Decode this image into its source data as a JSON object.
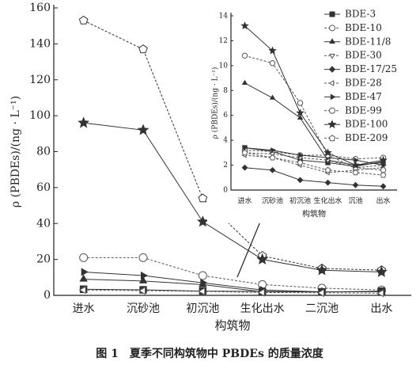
{
  "chart_data": [
    {
      "type": "line",
      "title": "图 1　夏季不同构筑物中 PBDEs 的质量浓度",
      "x_label": "构筑物",
      "y_label": "ρ (PBDEs)/(ng · L⁻¹)",
      "categories": [
        "进水",
        "沉砂池",
        "初沉池",
        "生化出水",
        "二沉池",
        "出水"
      ],
      "ylim": [
        0,
        160
      ],
      "yticks": [
        0,
        20,
        40,
        60,
        80,
        100,
        120,
        140,
        160
      ],
      "series": [
        {
          "values": [
            153,
            137,
            54,
            22,
            15,
            14
          ],
          "marker": "pentagon",
          "filled": false,
          "dashed": true,
          "color": "#333"
        },
        {
          "values": [
            96,
            92,
            41,
            20,
            14,
            13
          ],
          "marker": "star",
          "filled": true,
          "dashed": false,
          "color": "#333"
        },
        {
          "values": [
            21,
            21,
            11,
            6,
            4,
            3
          ],
          "marker": "circle",
          "filled": false,
          "dashed": true,
          "color": "#555"
        },
        {
          "values": [
            13,
            11,
            7,
            3,
            2,
            2
          ],
          "marker": "triangle-right",
          "filled": true,
          "dashed": false,
          "color": "#333"
        },
        {
          "values": [
            9,
            8,
            6,
            2,
            2,
            2
          ],
          "marker": "triangle-up",
          "filled": true,
          "dashed": false,
          "color": "#333"
        },
        {
          "values": [
            3.4,
            3.1,
            2.4,
            2.2,
            1.9,
            2.3
          ],
          "marker": "square",
          "filled": true,
          "dashed": false,
          "color": "#333"
        },
        {
          "values": [
            3,
            2.6,
            2.2,
            1.6,
            1.4,
            1.2
          ],
          "marker": "triangle-left",
          "filled": false,
          "dashed": true,
          "color": "#555"
        }
      ]
    },
    {
      "type": "line",
      "x_label": "构筑物",
      "y_label": "ρ (PBDEs)/(ng · L⁻¹)",
      "categories": [
        "进水",
        "沉砂池",
        "初沉池",
        "生化出水",
        "沉池",
        "出水"
      ],
      "ylim": [
        0,
        14
      ],
      "yticks": [
        0,
        2,
        4,
        6,
        8,
        10,
        12,
        14
      ],
      "series": [
        {
          "name": "BDE-3",
          "values": [
            3.4,
            3.1,
            2.4,
            2.2,
            1.9,
            2.3
          ],
          "marker": "square",
          "filled": true,
          "dashed": false,
          "color": "#333"
        },
        {
          "name": "BDE-10",
          "values": [
            3.2,
            3.1,
            2.8,
            2.8,
            2.5,
            2.6
          ],
          "marker": "circle",
          "filled": false,
          "dashed": true,
          "color": "#555"
        },
        {
          "name": "BDE-11/8",
          "values": [
            8.6,
            7.4,
            5.8,
            2.4,
            2.0,
            2.2
          ],
          "marker": "triangle-up",
          "filled": true,
          "dashed": false,
          "color": "#333"
        },
        {
          "name": "BDE-30",
          "values": [
            3.0,
            2.9,
            2.6,
            2.4,
            1.8,
            2.0
          ],
          "marker": "triangle-down",
          "filled": false,
          "dashed": true,
          "color": "#555"
        },
        {
          "name": "BDE-17/25",
          "values": [
            1.8,
            1.6,
            0.8,
            0.6,
            0.4,
            0.3
          ],
          "marker": "diamond",
          "filled": true,
          "dashed": false,
          "color": "#333"
        },
        {
          "name": "BDE-28",
          "values": [
            2.8,
            2.6,
            2.0,
            1.4,
            1.6,
            1.8
          ],
          "marker": "triangle-left",
          "filled": false,
          "dashed": true,
          "color": "#555"
        },
        {
          "name": "BDE-47",
          "values": [
            3.4,
            3.2,
            2.8,
            2.6,
            2.4,
            2.0
          ],
          "marker": "triangle-right",
          "filled": true,
          "dashed": false,
          "color": "#333"
        },
        {
          "name": "BDE-99",
          "values": [
            10.8,
            10.2,
            7.0,
            2.8,
            1.8,
            1.6
          ],
          "marker": "circle",
          "filled": false,
          "dashed": true,
          "color": "#555"
        },
        {
          "name": "BDE-100",
          "values": [
            13.2,
            11.2,
            6.2,
            3.0,
            2.0,
            2.4
          ],
          "marker": "star",
          "filled": true,
          "dashed": false,
          "color": "#333"
        },
        {
          "name": "BDE-209",
          "values": [
            3.0,
            2.6,
            2.2,
            1.6,
            1.4,
            1.2
          ],
          "marker": "pentagon",
          "filled": false,
          "dashed": true,
          "color": "#555"
        }
      ]
    }
  ]
}
